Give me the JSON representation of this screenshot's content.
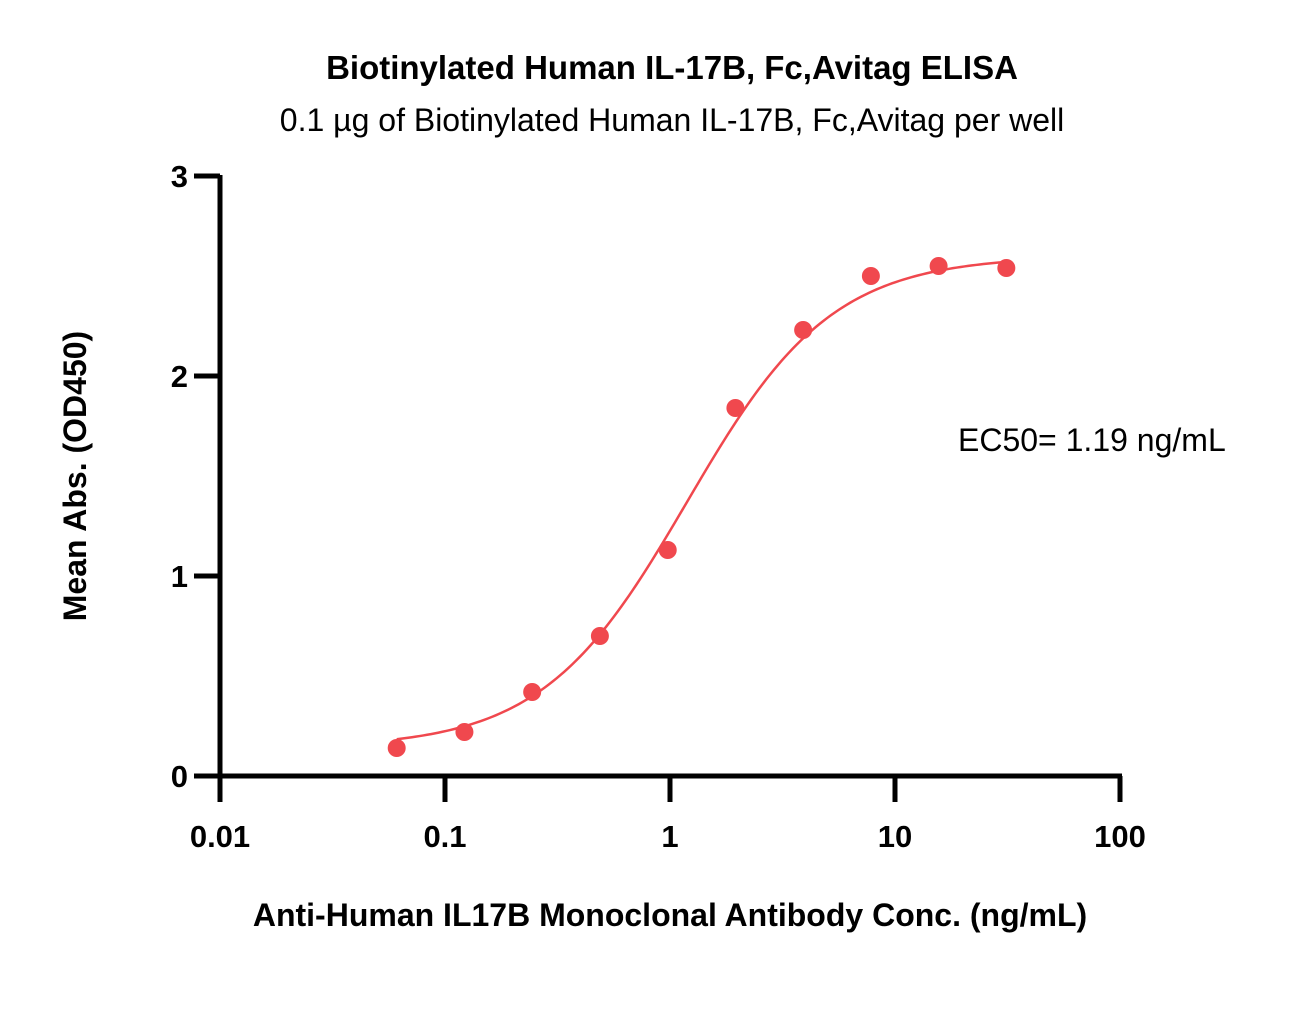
{
  "chart_data": {
    "type": "scatter",
    "title": "Biotinylated Human IL-17B, Fc,Avitag ELISA",
    "subtitle": "0.1 µg of Biotinylated Human IL-17B, Fc,Avitag per well",
    "xlabel": "Anti-Human IL17B Monoclonal Antibody Conc. (ng/mL)",
    "ylabel": "Mean Abs. (OD450)",
    "x_scale": "log",
    "xlim": [
      0.01,
      100
    ],
    "ylim": [
      0,
      3
    ],
    "x_ticks": [
      "0.01",
      "0.1",
      "1",
      "10",
      "100"
    ],
    "y_ticks": [
      "0",
      "1",
      "2",
      "3"
    ],
    "grid": false,
    "annotation": "EC50= 1.19 ng/mL",
    "series": [
      {
        "x": [
          0.061,
          0.122,
          0.244,
          0.488,
          0.977,
          1.953,
          3.906,
          7.813,
          15.625,
          31.25
        ],
        "y": [
          0.14,
          0.22,
          0.42,
          0.7,
          1.13,
          1.84,
          2.23,
          2.5,
          2.55,
          2.54
        ],
        "color": "#f0484e",
        "marker": "circle",
        "fit": "4PL"
      }
    ]
  }
}
